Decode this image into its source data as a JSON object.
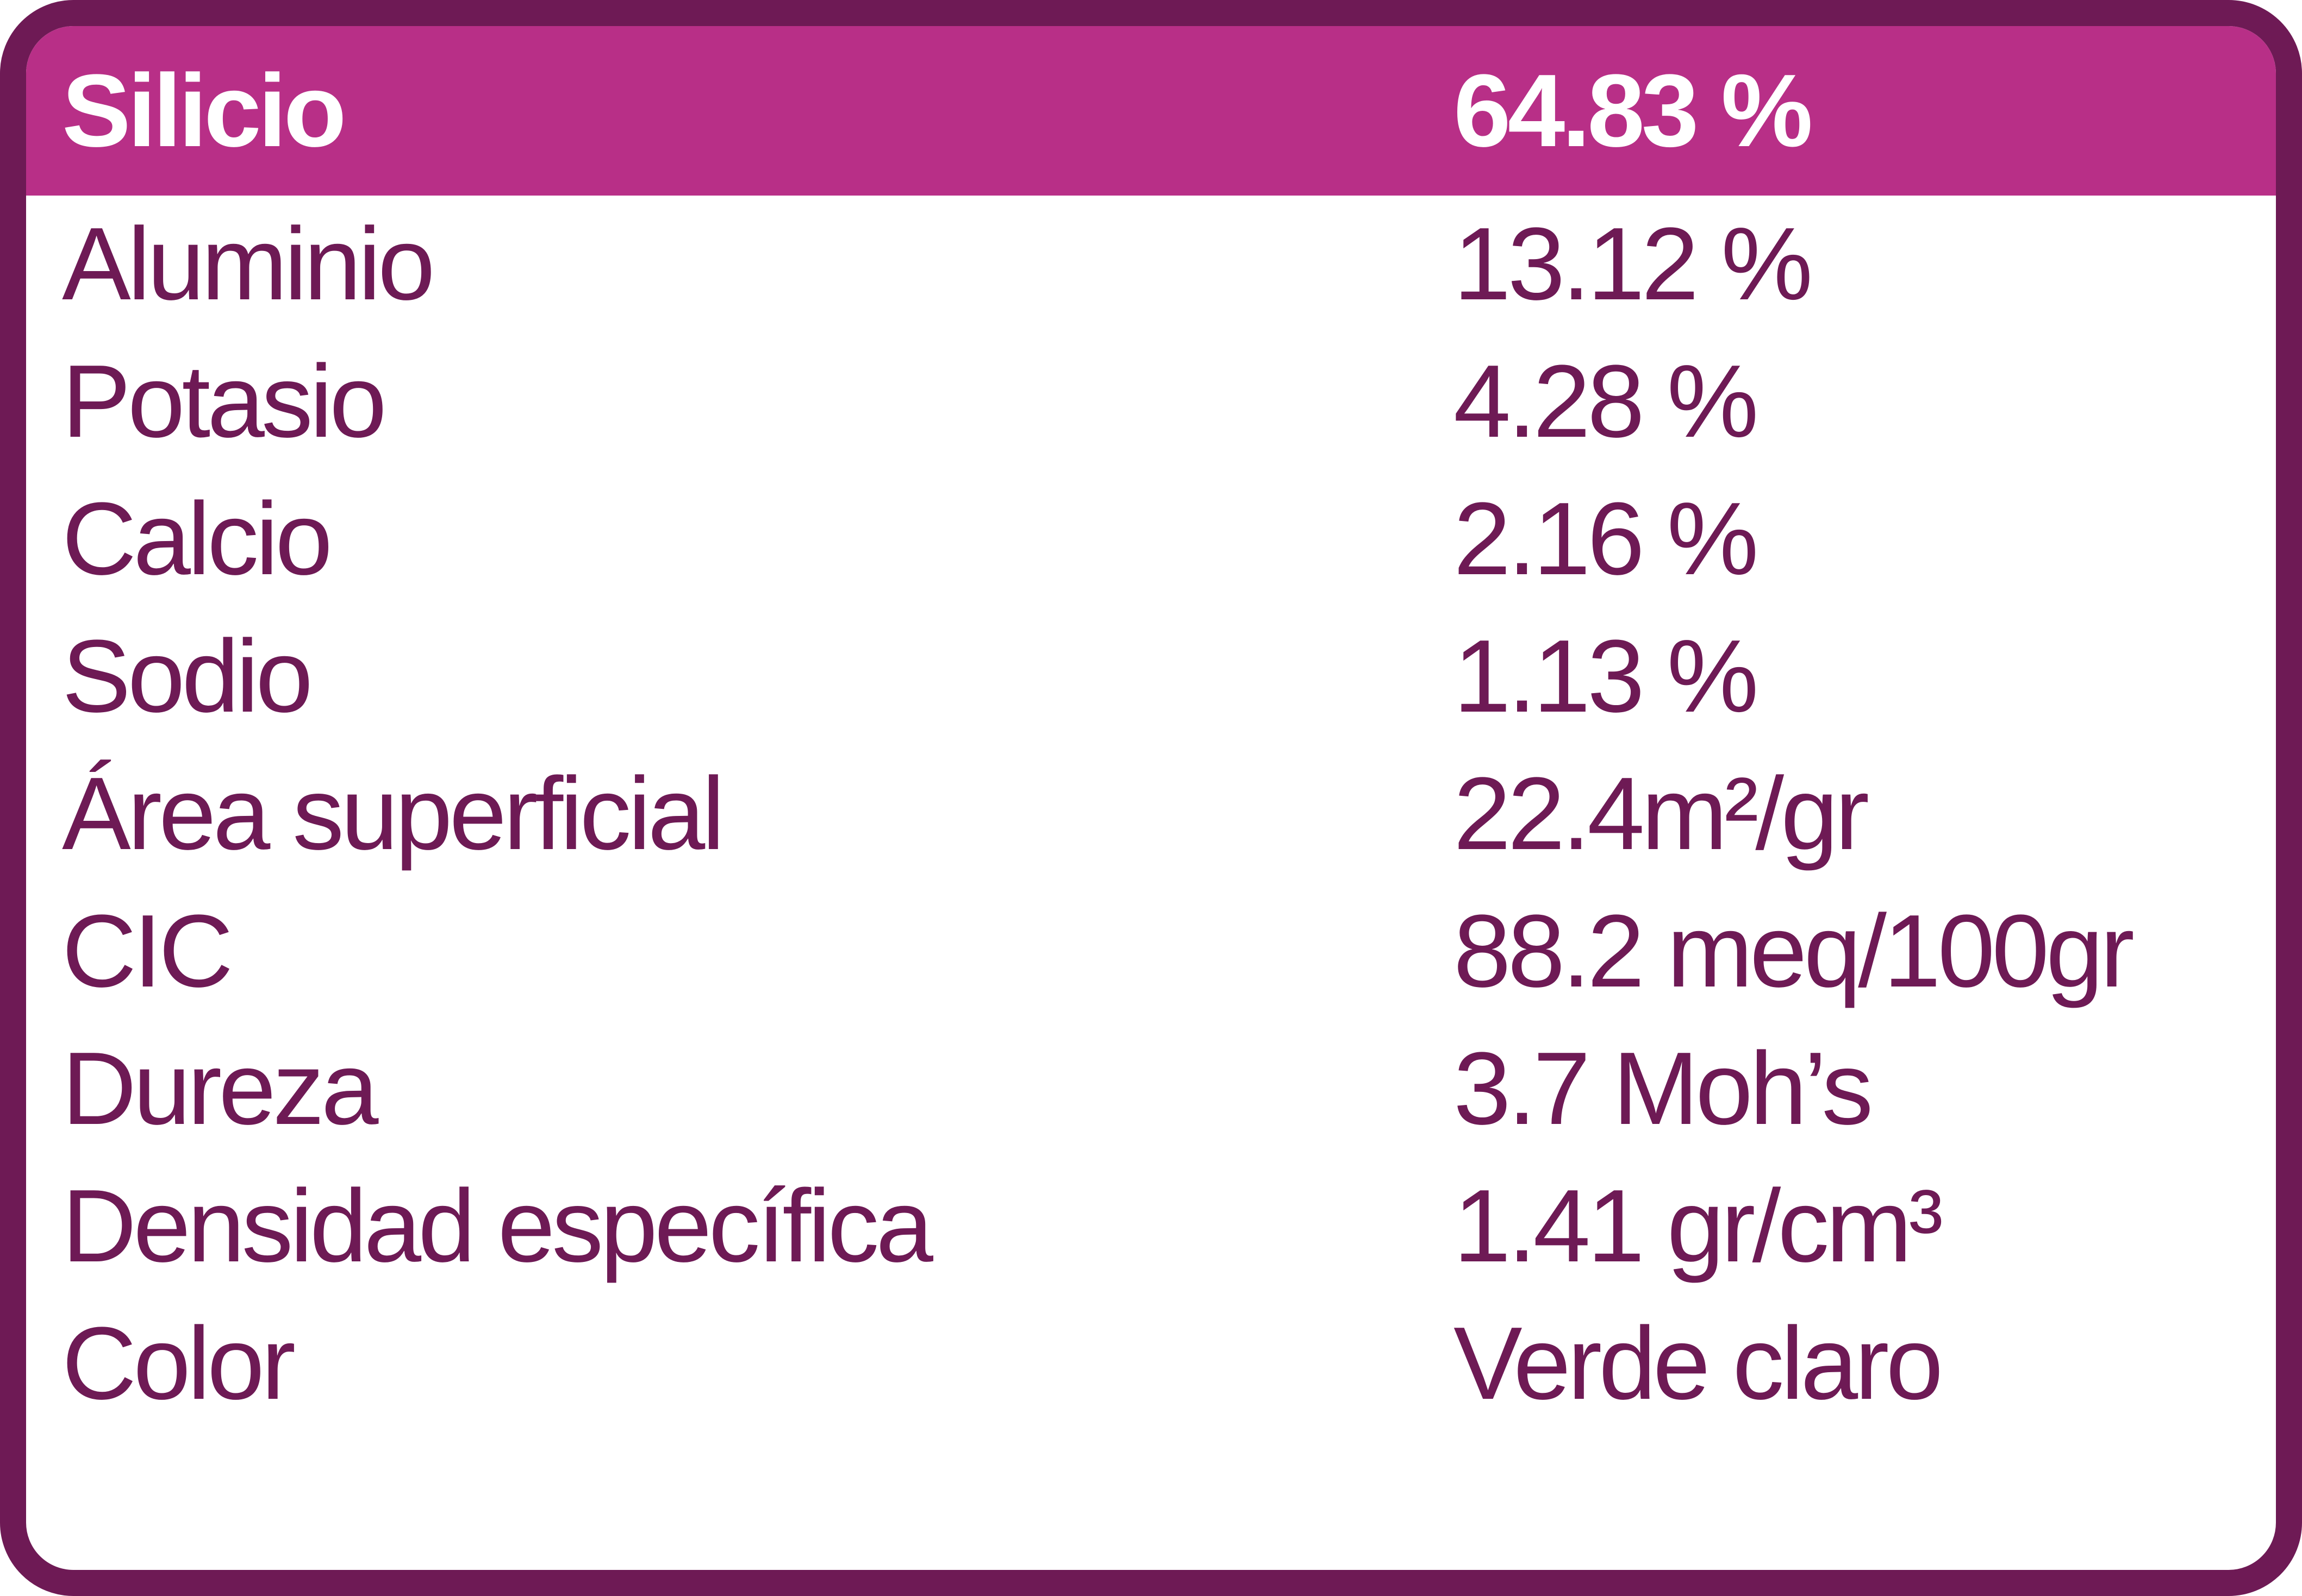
{
  "table": {
    "rows": [
      [
        "Silicio",
        "64.83 %"
      ],
      [
        "Aluminio",
        "13.12 %"
      ],
      [
        "Potasio",
        "4.28 %"
      ],
      [
        "Calcio",
        "2.16 %"
      ],
      [
        "Sodio",
        "1.13 %"
      ],
      [
        "Área superficial",
        "22.4m²/gr"
      ],
      [
        "CIC",
        "88.2 meq/100gr"
      ],
      [
        "Dureza",
        "3.7 Moh’s"
      ],
      [
        "Densidad específica",
        "1.41 gr/cm³"
      ],
      [
        "Color",
        "Verde claro"
      ]
    ]
  }
}
